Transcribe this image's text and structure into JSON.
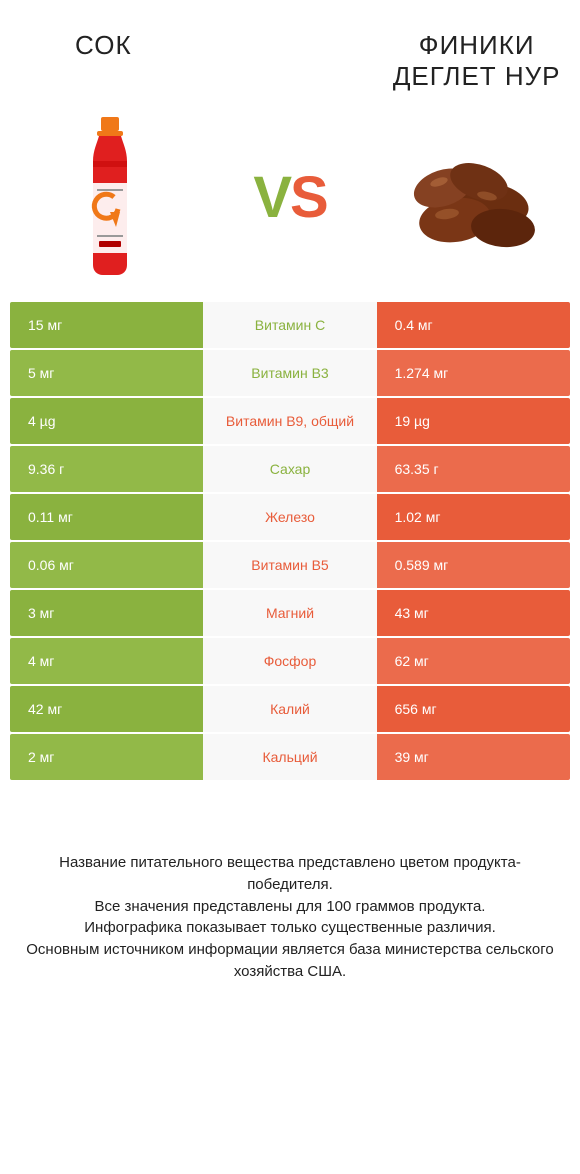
{
  "header": {
    "left_title": "СОК",
    "right_title": "ФИНИКИ ДЕГЛЕТ НУР"
  },
  "vs": {
    "v": "V",
    "s": "S"
  },
  "colors": {
    "green": "#8ab23f",
    "green_alt": "#92b948",
    "orange": "#e85c3a",
    "orange_alt": "#eb6b4c",
    "bg": "#ffffff",
    "text": "#222222"
  },
  "rows": [
    {
      "left": "15 мг",
      "mid": "Витамин C",
      "right": "0.4 мг",
      "winner": "left"
    },
    {
      "left": "5 мг",
      "mid": "Витамин B3",
      "right": "1.274 мг",
      "winner": "left"
    },
    {
      "left": "4 µg",
      "mid": "Витамин B9, общий",
      "right": "19 µg",
      "winner": "right"
    },
    {
      "left": "9.36 г",
      "mid": "Сахар",
      "right": "63.35 г",
      "winner": "left"
    },
    {
      "left": "0.11 мг",
      "mid": "Железо",
      "right": "1.02 мг",
      "winner": "right"
    },
    {
      "left": "0.06 мг",
      "mid": "Витамин B5",
      "right": "0.589 мг",
      "winner": "right"
    },
    {
      "left": "3 мг",
      "mid": "Магний",
      "right": "43 мг",
      "winner": "right"
    },
    {
      "left": "4 мг",
      "mid": "Фосфор",
      "right": "62 мг",
      "winner": "right"
    },
    {
      "left": "42 мг",
      "mid": "Калий",
      "right": "656 мг",
      "winner": "right"
    },
    {
      "left": "2 мг",
      "mid": "Кальций",
      "right": "39 мг",
      "winner": "right"
    }
  ],
  "footnotes": [
    "Название питательного вещества представлено цветом продукта-победителя.",
    "Все значения представлены для 100 граммов продукта.",
    "Инфографика показывает только существенные различия.",
    "Основным источником информации является база министерства сельского хозяйства США."
  ]
}
